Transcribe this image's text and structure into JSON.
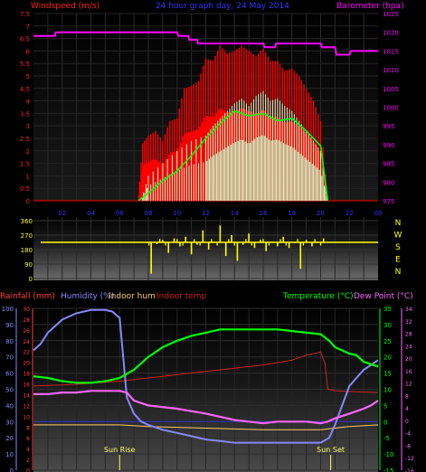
{
  "chart_data": [
    {
      "type": "line",
      "title": "24 hour graph day, 24 May 2014",
      "left_axis_label": "Windspeed (m/s)",
      "right_axis_label": "Barometer (hpa)",
      "x_ticks": [
        "02",
        "04",
        "06",
        "08",
        "10",
        "12",
        "14",
        "16",
        "18",
        "20",
        "22",
        "00"
      ],
      "left_ticks": [
        "0",
        "0.5",
        "1",
        "1.5",
        "2",
        "2.5",
        "3",
        "3.5",
        "4",
        "4.5",
        "5",
        "5.5",
        "6",
        "6.5",
        "7",
        "7.5"
      ],
      "right_ticks": [
        "975",
        "980",
        "985",
        "990",
        "995",
        "1000",
        "1005",
        "1010",
        "1015",
        "1020",
        "1025"
      ],
      "ylim_left": [
        0,
        7.5
      ],
      "ylim_right": [
        975,
        1025
      ],
      "barometer": {
        "x": [
          0,
          1.5,
          1.55,
          3.0,
          10.0,
          10.1,
          10.8,
          10.85,
          11.4,
          11.45,
          12.0,
          16.0,
          16.1,
          16.8,
          16.9,
          17.5,
          20.0,
          20.1,
          21.0,
          21.1,
          22.0,
          22.1,
          24.0
        ],
        "y": [
          1019,
          1019,
          1020,
          1020,
          1020,
          1019,
          1019,
          1018,
          1018,
          1017,
          1017,
          1017,
          1016,
          1016,
          1017,
          1017,
          1017,
          1016,
          1016,
          1014,
          1014,
          1015,
          1015
        ],
        "color": "#ff00ff"
      },
      "wind_gust": {
        "x": [
          7.3,
          7.6,
          8.0,
          8.5,
          9.0,
          9.5,
          10.0,
          10.5,
          11.0,
          11.5,
          12.0,
          12.5,
          13.0,
          13.5,
          14.0,
          14.5,
          15.0,
          15.5,
          16.0,
          16.5,
          17.0,
          17.5,
          18.0,
          18.5,
          19.0,
          19.5,
          20.0,
          20.5
        ],
        "y": [
          0,
          2.3,
          2.6,
          2.8,
          2.4,
          3.2,
          3.3,
          4.5,
          4.6,
          4.8,
          5.7,
          5.6,
          6.2,
          5.9,
          6.0,
          6.2,
          6.0,
          5.8,
          6.1,
          5.6,
          5.6,
          5.2,
          5.3,
          5.0,
          4.5,
          4.0,
          3.2,
          0
        ],
        "color": "#ff0000"
      },
      "wind_avg": {
        "x": [
          7.3,
          8.0,
          9.0,
          10.0,
          11.0,
          12.0,
          13.0,
          14.0,
          15.0,
          16.0,
          17.0,
          18.0,
          19.0,
          20.0,
          20.5
        ],
        "y": [
          0,
          0.3,
          0.8,
          1.2,
          1.8,
          2.5,
          3.1,
          3.6,
          3.4,
          3.5,
          3.2,
          3.3,
          2.8,
          2.2,
          0
        ],
        "color": "#00ff00"
      },
      "wind_speed": {
        "x": [
          7.5,
          8.0,
          9.0,
          10.0,
          11.0,
          12.0,
          12.5,
          13.0,
          13.5,
          14.0,
          14.5,
          15.0,
          15.5,
          16.0,
          16.5,
          17.0,
          17.5,
          18.0,
          18.5,
          19.0,
          19.5,
          20.0,
          20.5
        ],
        "y": [
          0,
          1.0,
          1.5,
          2.0,
          2.4,
          2.6,
          3.0,
          3.3,
          3.6,
          3.9,
          4.1,
          3.8,
          4.2,
          4.4,
          4.0,
          4.1,
          3.8,
          3.6,
          3.2,
          2.8,
          2.4,
          2.0,
          0
        ],
        "color": "#ccffcc"
      }
    },
    {
      "type": "scatter",
      "title": "Wind direction",
      "left_ticks": [
        "0",
        "90",
        "180",
        "270",
        "360"
      ],
      "right_ticks": [
        "N",
        "W",
        "S",
        "E",
        "N"
      ],
      "ylim": [
        0,
        360
      ],
      "baseline_value": 225,
      "direction": {
        "x": [
          7.9,
          8.2,
          8.6,
          9.0,
          9.4,
          9.8,
          10.2,
          10.6,
          11.0,
          11.4,
          11.8,
          12.2,
          12.6,
          13.0,
          13.4,
          13.8,
          14.2,
          14.6,
          15.0,
          15.4,
          15.8,
          16.2,
          16.6,
          17.0,
          17.4,
          17.8,
          18.2,
          18.6,
          19.0,
          19.4,
          19.8,
          20.2
        ],
        "y": [
          220,
          30,
          215,
          240,
          160,
          250,
          200,
          260,
          150,
          210,
          300,
          180,
          230,
          330,
          140,
          270,
          110,
          210,
          280,
          190,
          240,
          170,
          230,
          200,
          260,
          190,
          220,
          60,
          240,
          200,
          230,
          250
        ],
        "color": "#ffff00"
      }
    },
    {
      "type": "line",
      "series_labels": [
        "Rainfall (mm)",
        "Humidity (%)",
        "Indoor hum",
        "Indoor temp",
        "Temperature (°C)",
        "Dew Point (°C)"
      ],
      "series_colors": [
        "#ff4040",
        "#8888ff",
        "#ffcc66",
        "#cc2222",
        "#00ff00",
        "#ff66ff"
      ],
      "x_marker_labels": [
        "Sun Rise",
        "Sun Set"
      ],
      "x_marker_hours": [
        6.0,
        20.7
      ],
      "humidity_ticks": [
        "0",
        "10",
        "20",
        "30",
        "40",
        "50",
        "60",
        "70",
        "80",
        "90",
        "100"
      ],
      "rain_ticks": [
        "0",
        "2",
        "4",
        "6",
        "8",
        "10",
        "12",
        "14",
        "16",
        "18",
        "20",
        "22",
        "24",
        "26",
        "28",
        "30"
      ],
      "temp_ticks": [
        "-15",
        "-10",
        "-5",
        "0",
        "5",
        "10",
        "15",
        "20",
        "25",
        "30",
        "35"
      ],
      "dew_ticks": [
        "-16",
        "-12",
        "-8",
        "-4",
        "0",
        "4",
        "8",
        "12",
        "16",
        "20",
        "24",
        "28",
        "32",
        "34"
      ],
      "ylim_humidity": [
        0,
        100
      ],
      "ylim_temp": [
        -15,
        35
      ],
      "humidity": {
        "x": [
          0,
          0.5,
          1.0,
          2.0,
          3.0,
          4.0,
          5.0,
          5.5,
          6.0,
          6.2,
          6.5,
          7.0,
          7.5,
          8.0,
          9.0,
          10.0,
          11.0,
          12.0,
          13.0,
          14.0,
          15.0,
          16.0,
          17.0,
          18.0,
          19.0,
          20.0,
          20.6,
          21.0,
          21.5,
          22.0,
          23.0,
          24.0
        ],
        "y": [
          74,
          78,
          85,
          93,
          97,
          99,
          99,
          98,
          94,
          75,
          45,
          35,
          30,
          28,
          25,
          23,
          21,
          19,
          18,
          17,
          17,
          17,
          17,
          17,
          17,
          17,
          20,
          28,
          40,
          52,
          62,
          68
        ]
      },
      "indoor_hum": {
        "x": [
          0,
          6.0,
          8.0,
          12.0,
          16.0,
          20.0,
          22.0,
          24.0
        ],
        "y": [
          28,
          28,
          27,
          26,
          25,
          25,
          27,
          28
        ]
      },
      "indoor_temp": {
        "x": [
          0,
          3.0,
          6.0,
          8.0,
          10.0,
          12.0,
          14.0,
          16.0,
          18.0,
          19.0,
          20.0,
          20.3,
          20.5,
          21.0,
          24.0
        ],
        "y": [
          11.0,
          11.5,
          12.5,
          13.5,
          14.5,
          15.5,
          16.5,
          17.5,
          19.0,
          20.5,
          21.5,
          18.0,
          10.0,
          9.5,
          9.0
        ]
      },
      "temperature": {
        "x": [
          0,
          1.0,
          2.0,
          3.0,
          4.0,
          5.0,
          6.0,
          7.0,
          8.0,
          9.0,
          10.0,
          11.0,
          12.0,
          13.0,
          14.0,
          15.0,
          16.0,
          17.0,
          18.0,
          19.0,
          20.0,
          20.6,
          21.0,
          22.0,
          22.5,
          23.0,
          24.0
        ],
        "y": [
          14.0,
          13.5,
          12.5,
          12.0,
          12.0,
          12.5,
          13.5,
          16.0,
          20.0,
          23.0,
          25.0,
          26.5,
          27.5,
          28.5,
          28.5,
          28.5,
          28.5,
          28.5,
          28.0,
          27.5,
          27.0,
          25.0,
          23.0,
          21.0,
          20.5,
          18.5,
          17.0
        ]
      },
      "dew_point": {
        "x": [
          0,
          1.0,
          2.0,
          3.0,
          4.0,
          5.0,
          6.0,
          6.5,
          7.0,
          8.0,
          10.0,
          12.0,
          13.0,
          14.0,
          15.0,
          16.0,
          17.0,
          18.0,
          19.0,
          20.0,
          20.5,
          21.0,
          22.0,
          23.0,
          23.5,
          24.0
        ],
        "y": [
          8.5,
          8.5,
          9.0,
          9.0,
          9.5,
          9.5,
          9.5,
          9.0,
          6.5,
          5.0,
          4.0,
          2.5,
          1.5,
          0.5,
          0.0,
          -0.5,
          0.0,
          0.0,
          0.0,
          -0.5,
          0.0,
          1.0,
          2.5,
          4.0,
          5.0,
          6.5
        ]
      }
    }
  ]
}
